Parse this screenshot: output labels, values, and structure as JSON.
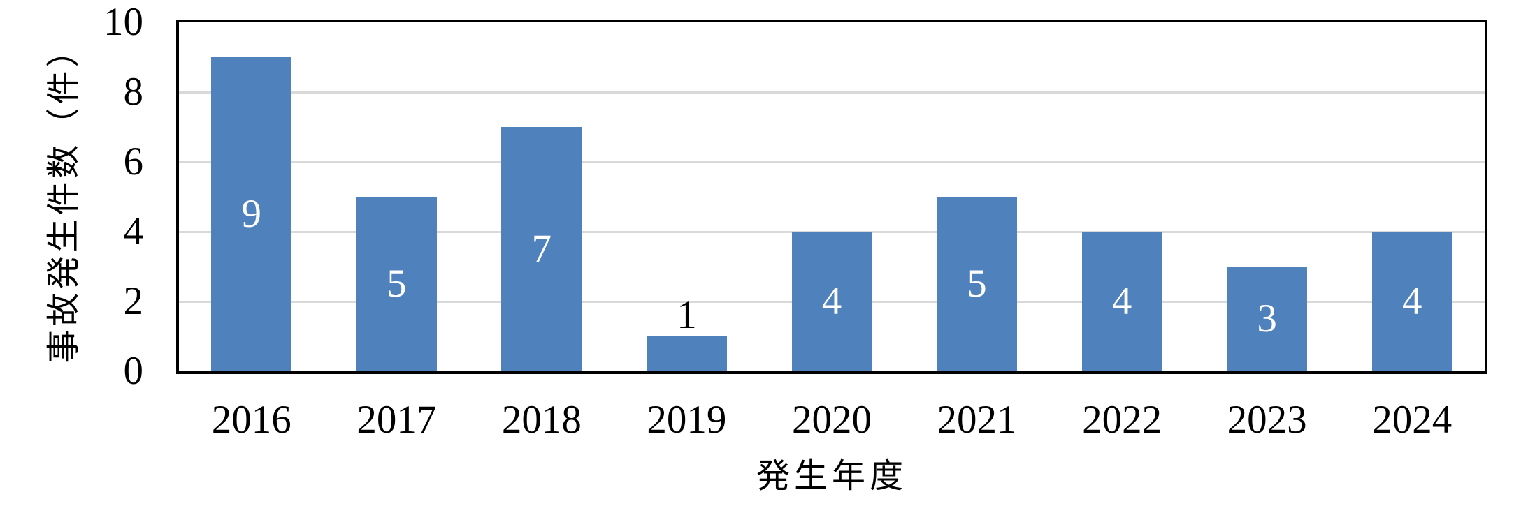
{
  "chart_data": {
    "type": "bar",
    "title": "",
    "categories": [
      "2016",
      "2017",
      "2018",
      "2019",
      "2020",
      "2021",
      "2022",
      "2023",
      "2024"
    ],
    "values": [
      9,
      5,
      7,
      1,
      4,
      5,
      4,
      3,
      4
    ],
    "data_labels": [
      "9",
      "5",
      "7",
      "1",
      "4",
      "5",
      "4",
      "3",
      "4"
    ],
    "outside_label_indices": [
      3
    ],
    "xlabel": "発生年度",
    "ylabel": "事故発生件数（件）",
    "ylim": [
      0,
      10
    ],
    "yticks": [
      "0",
      "2",
      "4",
      "6",
      "8",
      "10"
    ],
    "ytick_values": [
      0,
      2,
      4,
      6,
      8,
      10
    ],
    "gridline_values": [
      2,
      4,
      6,
      8
    ],
    "legend": "none",
    "grid": "horizontal",
    "colors": {
      "bar": "#4F81BD",
      "gridline": "#D9D9D9",
      "plot_border": "#000000",
      "label_inside": "#FFFFFF",
      "label_outside": "#000000",
      "text": "#000000",
      "background": "#FFFFFF"
    }
  }
}
